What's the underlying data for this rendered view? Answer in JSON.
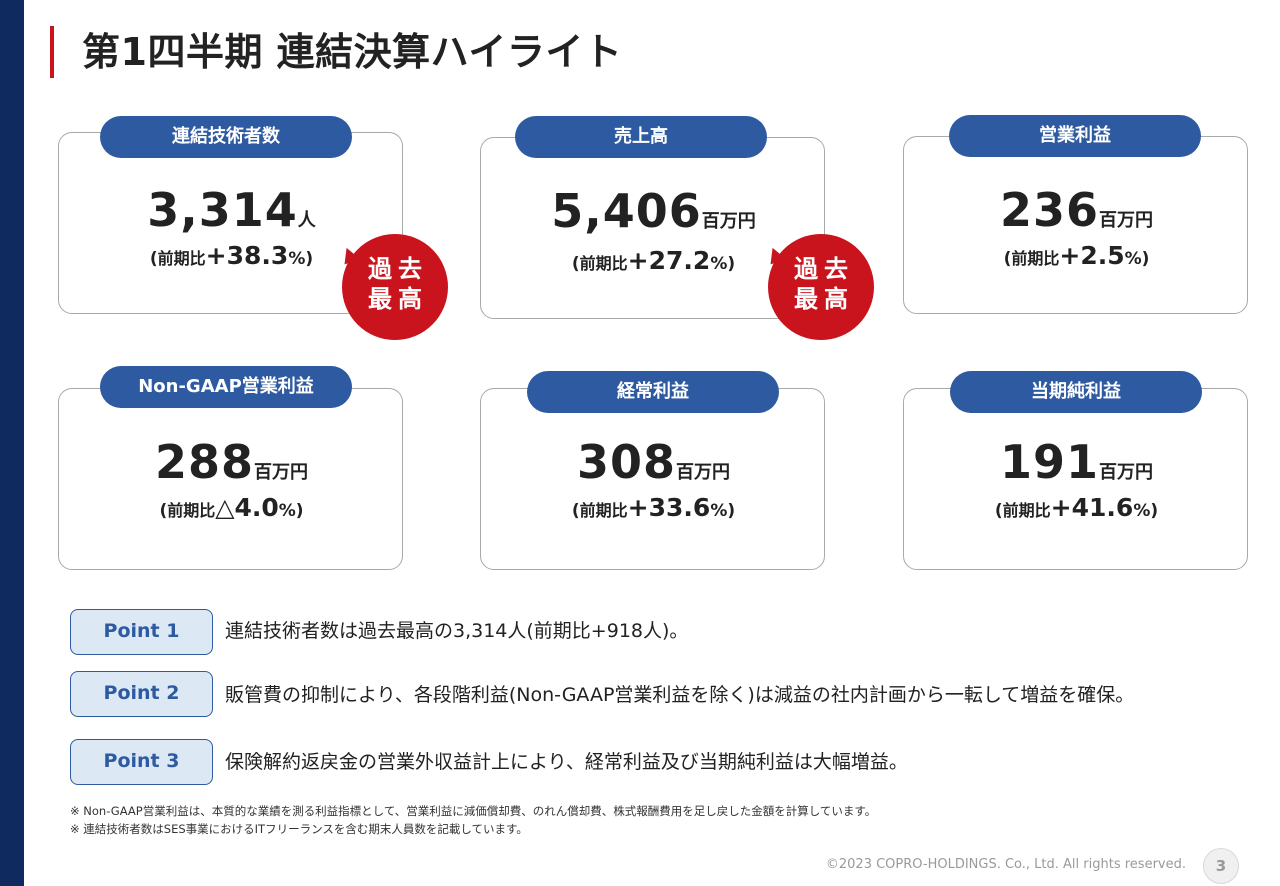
{
  "page": {
    "title": "第1四半期 連結決算ハイライト"
  },
  "cards": [
    {
      "label": "連結技術者数",
      "value": "3,314",
      "unit": "人",
      "change_paren_open": "(",
      "change_prefix": "前期比",
      "change_value": "+38.3",
      "change_suffix": "%)",
      "record": true
    },
    {
      "label": "売上高",
      "value": "5,406",
      "unit": "百万円",
      "change_paren_open": "(",
      "change_prefix": "前期比",
      "change_value": "+27.2",
      "change_suffix": "%)",
      "record": true
    },
    {
      "label": "営業利益",
      "value": "236",
      "unit": "百万円",
      "change_paren_open": "(",
      "change_prefix": "前期比",
      "change_value": "+2.5",
      "change_suffix": "%)",
      "record": false
    },
    {
      "label": "Non-GAAP営業利益",
      "value": "288",
      "unit": "百万円",
      "change_paren_open": "(",
      "change_prefix": "前期比",
      "change_value": "△4.0",
      "change_suffix": "%)",
      "record": false
    },
    {
      "label": "経常利益",
      "value": "308",
      "unit": "百万円",
      "change_paren_open": "(",
      "change_prefix": "前期比",
      "change_value": "+33.6",
      "change_suffix": "%)",
      "record": false
    },
    {
      "label": "当期純利益",
      "value": "191",
      "unit": "百万円",
      "change_paren_open": "(",
      "change_prefix": "前期比",
      "change_value": "+41.6",
      "change_suffix": "%)",
      "record": false
    }
  ],
  "record_badge": {
    "line1": "過去",
    "line2": "最高"
  },
  "points": [
    {
      "label": "Point 1",
      "text": "連結技術者数は過去最高の3,314人(前期比+918人)。"
    },
    {
      "label": "Point 2",
      "text": "販管費の抑制により、各段階利益(Non-GAAP営業利益を除く)は減益の社内計画から一転して増益を確保。"
    },
    {
      "label": "Point 3",
      "text": "保険解約返戻金の営業外収益計上により、経常利益及び当期純利益は大幅増益。"
    }
  ],
  "footnotes": [
    "※ Non-GAAP営業利益は、本質的な業績を測る利益指標として、営業利益に減価償却費、のれん償却費、株式報酬費用を足し戻した金額を計算しています。",
    "※ 連結技術者数はSES事業におけるITフリーランスを含む期末人員数を記載しています。"
  ],
  "footer": {
    "copyright": "©2023 COPRO-HOLDINGS. Co., Ltd. All rights reserved.",
    "page_number": "3"
  },
  "colors": {
    "navy_bar": "#0e2a5e",
    "accent_red": "#c9141e",
    "label_blue": "#2d5aa0",
    "point_bg": "#dde8f5"
  }
}
